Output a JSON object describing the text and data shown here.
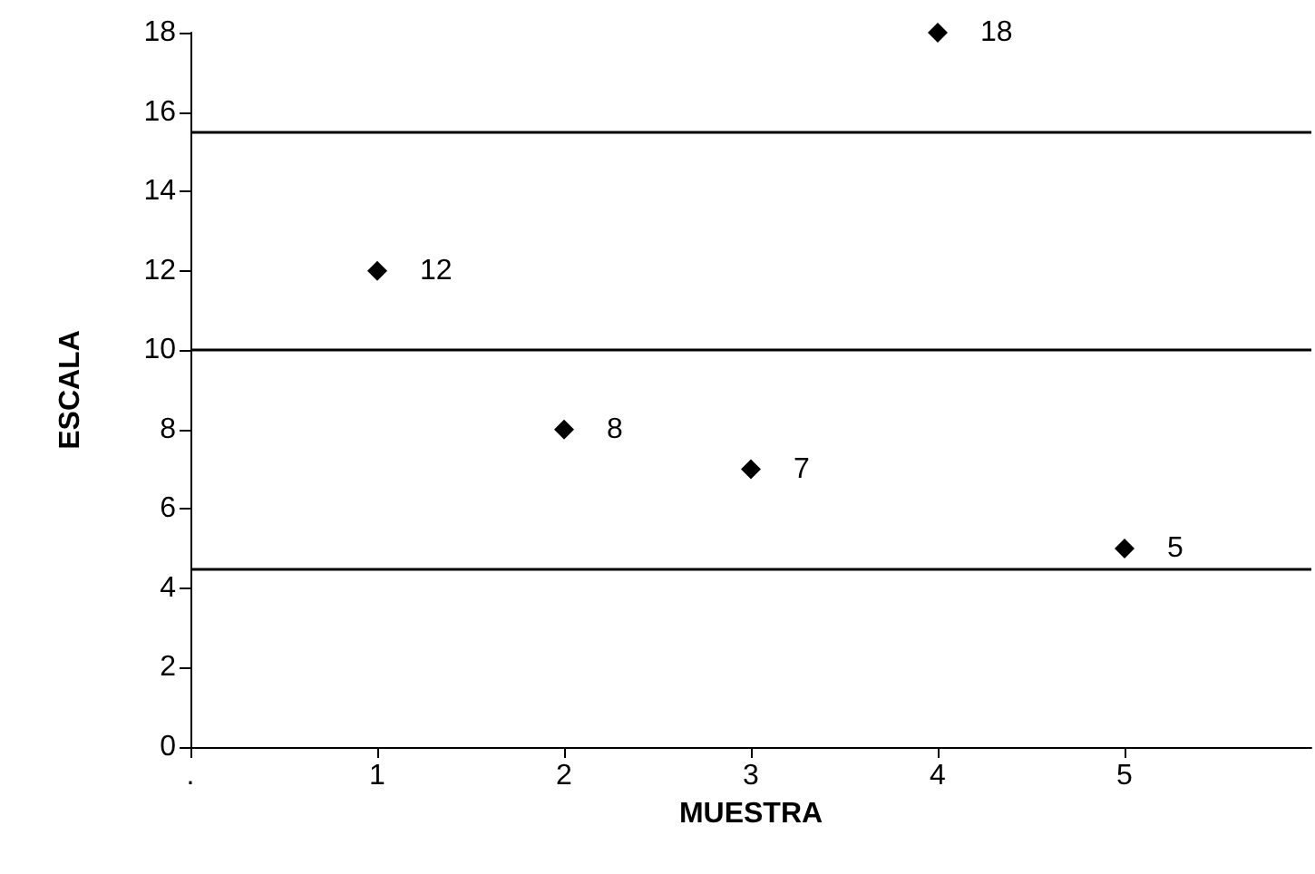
{
  "chart_data": {
    "type": "scatter",
    "xlabel": "MUESTRA",
    "ylabel": "ESCALA",
    "x": [
      1,
      2,
      3,
      4,
      5
    ],
    "values": [
      12,
      8,
      7,
      18,
      5
    ],
    "color": "#000000",
    "marker": "diamond",
    "data_labels": true,
    "xlim": [
      0,
      6
    ],
    "xticks": [
      {
        "value": 0,
        "label": "."
      },
      1,
      2,
      3,
      4,
      5
    ],
    "ylim": [
      0,
      18
    ],
    "yticks": [
      0,
      2,
      4,
      6,
      8,
      10,
      12,
      14,
      16,
      18
    ],
    "ref_lines": [
      {
        "axis": "y",
        "value": 15.5
      },
      {
        "axis": "y",
        "value": 10
      },
      {
        "axis": "y",
        "value": 4.5
      }
    ],
    "grid": false
  }
}
